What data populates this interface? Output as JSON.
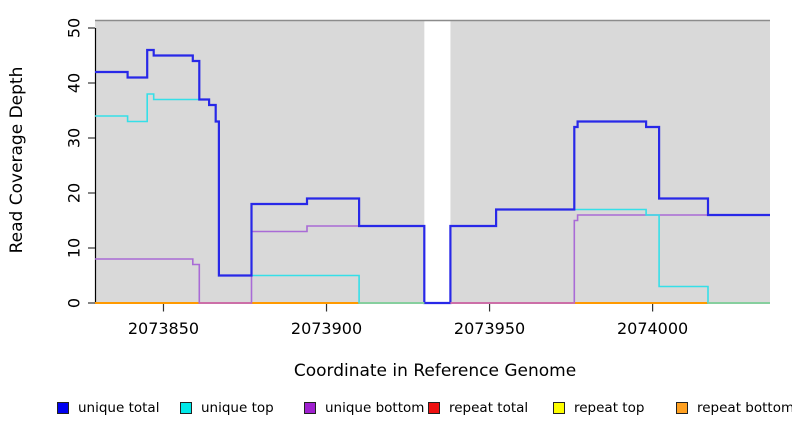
{
  "chart_data": {
    "type": "line",
    "subtype": "step",
    "title": "",
    "xlabel": "Coordinate in Reference Genome",
    "ylabel": "Read Coverage Depth",
    "xlim": [
      2073829,
      2074036
    ],
    "ylim": [
      0,
      51.6
    ],
    "x_ticks": [
      "2073850",
      "2073900",
      "2073950",
      "2074000"
    ],
    "x_tick_values": [
      2073850,
      2073900,
      2073950,
      2074000
    ],
    "y_ticks": [
      "0",
      "10",
      "20",
      "30",
      "40",
      "50"
    ],
    "y_tick_values": [
      0,
      10,
      20,
      30,
      40,
      50
    ],
    "grid": false,
    "panel_bg": "#d9d9d9",
    "panel_border_color": "#8c8c8c",
    "masked_region": {
      "start": 2073930,
      "end": 2073938,
      "color": "#ffffff"
    },
    "legend_position": "bottom",
    "series": [
      {
        "name": "unique total",
        "color": "#2828e8",
        "width": 2.2,
        "points": [
          [
            2073829,
            42
          ],
          [
            2073839,
            41
          ],
          [
            2073845,
            46
          ],
          [
            2073847,
            45
          ],
          [
            2073859,
            44
          ],
          [
            2073861,
            37
          ],
          [
            2073864,
            36
          ],
          [
            2073866,
            33
          ],
          [
            2073867,
            5
          ],
          [
            2073877,
            18
          ],
          [
            2073894,
            19
          ],
          [
            2073910,
            14
          ],
          [
            2073930,
            0
          ],
          [
            2073938,
            14
          ],
          [
            2073952,
            17
          ],
          [
            2073976,
            32
          ],
          [
            2073977,
            33
          ],
          [
            2073998,
            32
          ],
          [
            2074002,
            19
          ],
          [
            2074017,
            16
          ]
        ]
      },
      {
        "name": "unique top",
        "color": "#35dfe8",
        "width": 1.6,
        "points": [
          [
            2073829,
            34
          ],
          [
            2073839,
            33
          ],
          [
            2073845,
            38
          ],
          [
            2073847,
            37
          ],
          [
            2073864,
            36
          ],
          [
            2073866,
            33
          ],
          [
            2073867,
            5
          ],
          [
            2073910,
            0
          ],
          [
            2073938,
            14
          ],
          [
            2073952,
            17
          ],
          [
            2073998,
            16
          ],
          [
            2074002,
            3
          ],
          [
            2074017,
            0
          ]
        ]
      },
      {
        "name": "unique bottom",
        "color": "#a96bd6",
        "width": 1.6,
        "points": [
          [
            2073829,
            8
          ],
          [
            2073859,
            7
          ],
          [
            2073861,
            0
          ],
          [
            2073877,
            13
          ],
          [
            2073894,
            14
          ],
          [
            2073930,
            0
          ],
          [
            2073976,
            15
          ],
          [
            2073977,
            16
          ]
        ]
      },
      {
        "name": "repeat total",
        "color": "#e01010",
        "width": 1.4,
        "points": [
          [
            2073829,
            0
          ]
        ]
      },
      {
        "name": "repeat top",
        "color": "#f5f500",
        "width": 1.4,
        "points": [
          [
            2073829,
            0
          ]
        ]
      },
      {
        "name": "repeat bottom",
        "color": "#ff9a00",
        "width": 2,
        "points": [
          [
            2073829,
            0
          ]
        ]
      }
    ],
    "zero_line_blend_segments": [
      {
        "start": 2073861,
        "end": 2073877,
        "color": "#cc6fa8"
      },
      {
        "start": 2073910,
        "end": 2073930,
        "color": "#86cf9e"
      },
      {
        "start": 2073938,
        "end": 2073976,
        "color": "#cc6fa8"
      },
      {
        "start": 2074017,
        "end": 2074036,
        "color": "#86cf9e"
      }
    ],
    "legend": [
      {
        "label": "unique total",
        "fill": "#0000f0"
      },
      {
        "label": "unique top",
        "fill": "#00e8e8"
      },
      {
        "label": "unique bottom",
        "fill": "#a020d0"
      },
      {
        "label": "repeat total",
        "fill": "#ee1111"
      },
      {
        "label": "repeat top",
        "fill": "#fdfd00"
      },
      {
        "label": "repeat bottom",
        "fill": "#ffa020"
      }
    ]
  }
}
